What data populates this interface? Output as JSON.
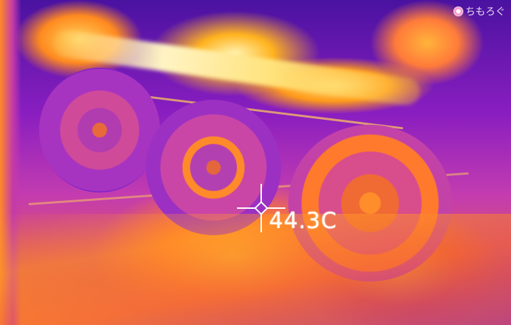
{
  "image": {
    "kind": "thermal-camera-photo",
    "palette": "iron",
    "subject_colors": {
      "cold": "#3a0e8a",
      "cool": "#9b30c2",
      "warm": "#e85a4a",
      "hot": "#ff9a1a",
      "hottest": "#fff3b0"
    }
  },
  "overlay": {
    "temperature": "44.3C",
    "crosshair_icon": "crosshair-icon"
  },
  "watermark": {
    "text": "ちもろぐ",
    "mark_icon": "watermark-logo-icon"
  }
}
